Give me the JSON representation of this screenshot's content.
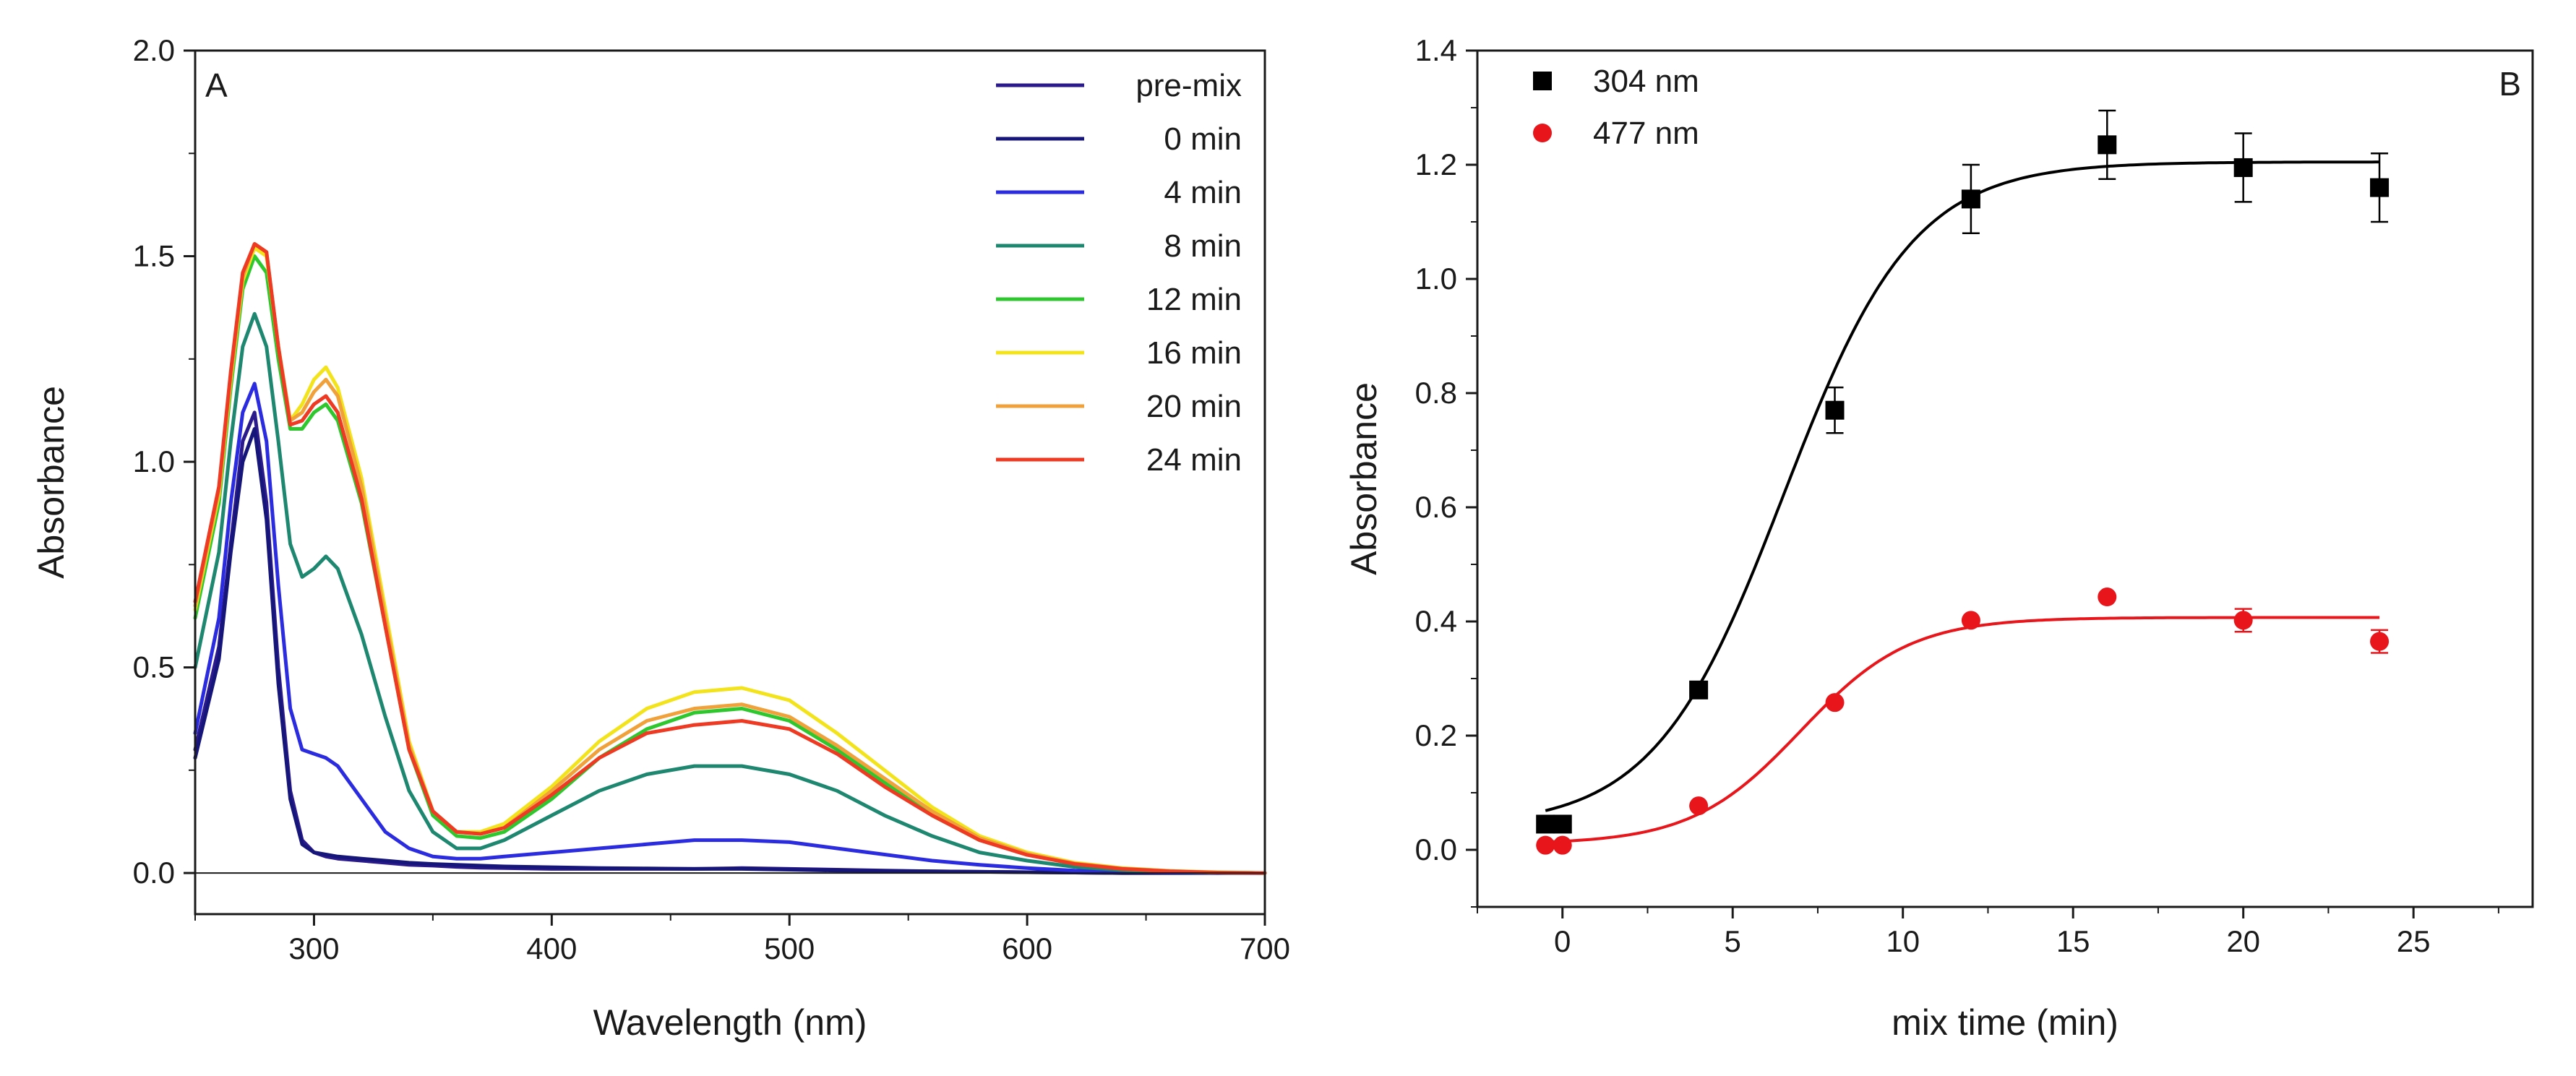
{
  "chart_data": [
    {
      "panel": "A",
      "type": "line",
      "xlabel": "Wavelength (nm)",
      "ylabel": "Absorbance",
      "xlim": [
        250,
        700
      ],
      "ylim": [
        -0.1,
        2.0
      ],
      "xticks": [
        300,
        400,
        500,
        600,
        700
      ],
      "yticks": [
        0.0,
        0.5,
        1.0,
        1.5,
        2.0
      ],
      "xtick_labels": [
        "300",
        "400",
        "500",
        "600",
        "700"
      ],
      "ytick_labels": [
        "0.0",
        "0.5",
        "1.0",
        "1.5",
        "2.0"
      ],
      "baseline": 0,
      "legend_position": "top-right",
      "x": [
        250,
        260,
        265,
        270,
        275,
        280,
        285,
        290,
        295,
        300,
        305,
        310,
        320,
        330,
        340,
        350,
        360,
        370,
        380,
        400,
        420,
        440,
        460,
        480,
        500,
        520,
        540,
        560,
        580,
        600,
        620,
        640,
        660,
        680,
        700
      ],
      "series": [
        {
          "name": "pre-mix",
          "color": "#2b1a8c",
          "values": [
            0.3,
            0.55,
            0.8,
            1.05,
            1.12,
            0.9,
            0.5,
            0.2,
            0.08,
            0.05,
            0.04,
            0.035,
            0.03,
            0.025,
            0.02,
            0.018,
            0.015,
            0.013,
            0.012,
            0.01,
            0.01,
            0.01,
            0.01,
            0.012,
            0.01,
            0.008,
            0.006,
            0.004,
            0.003,
            0.002,
            0.001,
            0.0,
            0.0,
            0.0,
            0.0
          ]
        },
        {
          "name": "0 min",
          "color": "#15157a",
          "values": [
            0.28,
            0.52,
            0.78,
            1.0,
            1.08,
            0.86,
            0.46,
            0.18,
            0.07,
            0.05,
            0.045,
            0.04,
            0.035,
            0.03,
            0.025,
            0.022,
            0.02,
            0.018,
            0.016,
            0.014,
            0.012,
            0.011,
            0.01,
            0.01,
            0.008,
            0.006,
            0.005,
            0.004,
            0.003,
            0.002,
            0.001,
            0.0,
            0.0,
            0.0,
            0.0
          ]
        },
        {
          "name": "4 min",
          "color": "#2b2be0",
          "values": [
            0.34,
            0.62,
            0.9,
            1.12,
            1.19,
            1.05,
            0.7,
            0.4,
            0.3,
            0.29,
            0.28,
            0.26,
            0.18,
            0.1,
            0.06,
            0.04,
            0.035,
            0.035,
            0.04,
            0.05,
            0.06,
            0.07,
            0.08,
            0.08,
            0.075,
            0.06,
            0.045,
            0.03,
            0.02,
            0.012,
            0.006,
            0.003,
            0.001,
            0.0,
            0.0
          ]
        },
        {
          "name": "8 min",
          "color": "#1e8770",
          "values": [
            0.5,
            0.78,
            1.05,
            1.28,
            1.36,
            1.28,
            1.05,
            0.8,
            0.72,
            0.74,
            0.77,
            0.74,
            0.58,
            0.38,
            0.2,
            0.1,
            0.06,
            0.06,
            0.08,
            0.14,
            0.2,
            0.24,
            0.26,
            0.26,
            0.24,
            0.2,
            0.14,
            0.09,
            0.05,
            0.03,
            0.015,
            0.007,
            0.003,
            0.001,
            0.0
          ]
        },
        {
          "name": "12 min",
          "color": "#2ec82e",
          "values": [
            0.62,
            0.9,
            1.18,
            1.42,
            1.5,
            1.46,
            1.25,
            1.08,
            1.08,
            1.12,
            1.14,
            1.1,
            0.9,
            0.6,
            0.3,
            0.14,
            0.09,
            0.085,
            0.1,
            0.18,
            0.28,
            0.35,
            0.39,
            0.4,
            0.37,
            0.3,
            0.22,
            0.14,
            0.08,
            0.045,
            0.022,
            0.01,
            0.004,
            0.001,
            0.0
          ]
        },
        {
          "name": "16 min",
          "color": "#f2e31a",
          "values": [
            0.64,
            0.92,
            1.2,
            1.44,
            1.52,
            1.5,
            1.28,
            1.1,
            1.14,
            1.2,
            1.23,
            1.18,
            0.96,
            0.64,
            0.32,
            0.15,
            0.1,
            0.1,
            0.12,
            0.21,
            0.32,
            0.4,
            0.44,
            0.45,
            0.42,
            0.34,
            0.25,
            0.16,
            0.09,
            0.05,
            0.025,
            0.012,
            0.005,
            0.002,
            0.0
          ]
        },
        {
          "name": "20 min",
          "color": "#f0a13a",
          "values": [
            0.65,
            0.93,
            1.21,
            1.45,
            1.53,
            1.51,
            1.28,
            1.1,
            1.12,
            1.17,
            1.2,
            1.16,
            0.94,
            0.62,
            0.31,
            0.15,
            0.1,
            0.095,
            0.11,
            0.2,
            0.3,
            0.37,
            0.4,
            0.41,
            0.38,
            0.31,
            0.23,
            0.15,
            0.085,
            0.047,
            0.023,
            0.011,
            0.005,
            0.001,
            0.0
          ]
        },
        {
          "name": "24 min",
          "color": "#ee3a22",
          "values": [
            0.66,
            0.94,
            1.22,
            1.46,
            1.53,
            1.51,
            1.28,
            1.09,
            1.1,
            1.14,
            1.16,
            1.12,
            0.91,
            0.6,
            0.3,
            0.15,
            0.1,
            0.095,
            0.11,
            0.19,
            0.28,
            0.34,
            0.36,
            0.37,
            0.35,
            0.29,
            0.21,
            0.14,
            0.08,
            0.044,
            0.022,
            0.01,
            0.004,
            0.001,
            0.0
          ]
        }
      ]
    },
    {
      "panel": "B",
      "type": "scatter",
      "xlabel": "mix time (min)",
      "ylabel": "Absorbance",
      "xlim": [
        -2.5,
        28.5
      ],
      "ylim": [
        -0.1,
        1.4
      ],
      "xticks": [
        0,
        5,
        10,
        15,
        20,
        25
      ],
      "yticks": [
        0.0,
        0.2,
        0.4,
        0.6,
        0.8,
        1.0,
        1.2,
        1.4
      ],
      "xtick_labels": [
        "0",
        "5",
        "10",
        "15",
        "20",
        "25"
      ],
      "ytick_labels": [
        "0.0",
        "0.2",
        "0.4",
        "0.6",
        "0.8",
        "1.0",
        "1.2",
        "1.4"
      ],
      "legend_position": "top-left",
      "series": [
        {
          "name": "304 nm",
          "color": "#000000",
          "marker": "square",
          "x": [
            -0.5,
            0,
            4,
            8,
            12,
            16,
            20,
            24
          ],
          "y": [
            0.045,
            0.045,
            0.28,
            0.77,
            1.14,
            1.235,
            1.195,
            1.16
          ],
          "err": [
            0.0,
            0.0,
            0.0,
            0.04,
            0.06,
            0.06,
            0.06,
            0.06
          ],
          "fit": {
            "baseline": 0.04,
            "amplitude": 1.165,
            "x_half": 6.5,
            "width": 1.9,
            "x_from": -0.5,
            "x_to": 24
          }
        },
        {
          "name": "477 nm",
          "color": "#e8151b",
          "marker": "circle",
          "x": [
            -0.5,
            0,
            4,
            8,
            12,
            16,
            20,
            24
          ],
          "y": [
            0.008,
            0.008,
            0.077,
            0.258,
            0.402,
            0.443,
            0.402,
            0.365
          ],
          "err": [
            0.0,
            0.0,
            0.0,
            0.0,
            0.0,
            0.0,
            0.02,
            0.02
          ],
          "fit": {
            "baseline": 0.01,
            "amplitude": 0.397,
            "x_half": 7.0,
            "width": 1.6,
            "x_from": -0.5,
            "x_to": 24
          }
        }
      ]
    }
  ],
  "panels": {
    "a": {
      "label": "A"
    },
    "b": {
      "label": "B"
    }
  }
}
